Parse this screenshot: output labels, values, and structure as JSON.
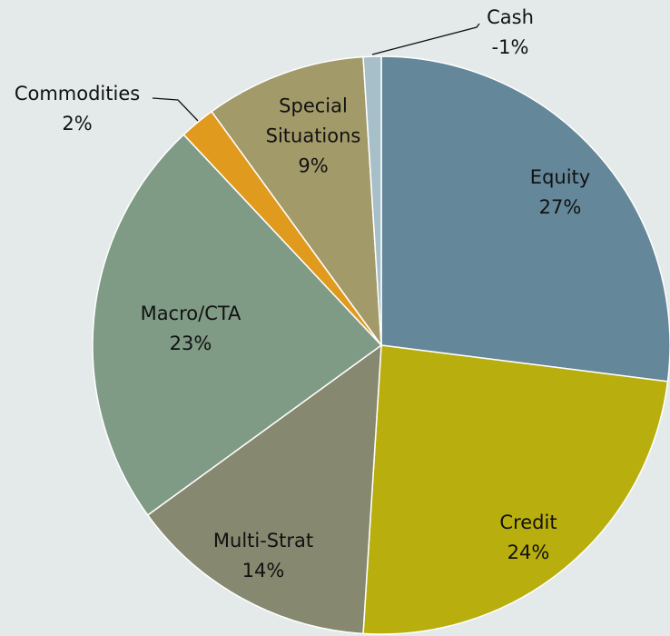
{
  "chart_data": {
    "type": "pie",
    "categories": [
      "Equity",
      "Credit",
      "Multi-Strat",
      "Macro/CTA",
      "Commodities",
      "Special Situations",
      "Cash"
    ],
    "values": [
      27,
      24,
      14,
      23,
      2,
      9,
      -1
    ],
    "value_labels": [
      "27%",
      "24%",
      "14%",
      "23%",
      "2%",
      "9%",
      "-1%"
    ],
    "colors": [
      "#65879a",
      "#b8ae0e",
      "#878870",
      "#7f9a85",
      "#e09b1f",
      "#a39a6a",
      "#a7bfc8"
    ]
  }
}
